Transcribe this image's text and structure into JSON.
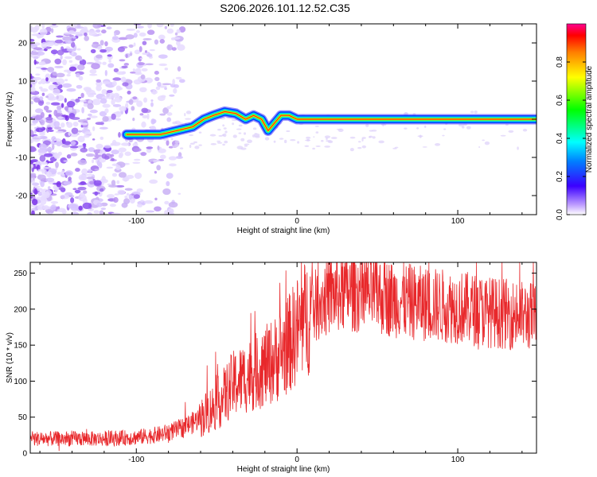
{
  "title": "S206.2026.101.12.52.C35",
  "chart_data": [
    {
      "type": "heatmap",
      "xlabel": "Height of straight line (km)",
      "ylabel": "Frequency (Hz)",
      "xlim": [
        -166,
        149
      ],
      "ylim": [
        -25,
        25
      ],
      "xticks": [
        -100,
        0,
        100
      ],
      "yticks": [
        -20,
        -10,
        0,
        10,
        20
      ],
      "colorbar": {
        "label": "Normalized spectral amplitude",
        "ticks": [
          0.0,
          0.2,
          0.4,
          0.6,
          0.8
        ],
        "range": [
          0,
          1
        ]
      },
      "ridge": {
        "description": "line trace",
        "points": [
          [
            -106,
            -4
          ],
          [
            -95,
            -4
          ],
          [
            -85,
            -4
          ],
          [
            -75,
            -3
          ],
          [
            -65,
            -2
          ],
          [
            -58,
            0
          ],
          [
            -52,
            1
          ],
          [
            -45,
            2
          ],
          [
            -38,
            1.5
          ],
          [
            -32,
            0
          ],
          [
            -27,
            1
          ],
          [
            -22,
            0
          ],
          [
            -18,
            -3
          ],
          [
            -14,
            -1
          ],
          [
            -10,
            1
          ],
          [
            -5,
            1
          ],
          [
            0,
            0
          ],
          [
            10,
            0
          ],
          [
            40,
            0
          ],
          [
            80,
            0
          ],
          [
            120,
            0
          ],
          [
            149,
            0
          ]
        ]
      }
    },
    {
      "type": "line",
      "xlabel": "Height of straight line (km)",
      "ylabel": "SNR (10 * v/v)",
      "xlim": [
        -166,
        149
      ],
      "ylim": [
        0,
        265
      ],
      "xticks": [
        -100,
        0,
        100
      ],
      "yticks": [
        0,
        50,
        100,
        150,
        200,
        250
      ],
      "color": "#e8282b",
      "trend": [
        [
          -166,
          20
        ],
        [
          -120,
          20
        ],
        [
          -100,
          22
        ],
        [
          -85,
          26
        ],
        [
          -75,
          32
        ],
        [
          -65,
          42
        ],
        [
          -55,
          58
        ],
        [
          -48,
          72
        ],
        [
          -40,
          95
        ],
        [
          -30,
          108
        ],
        [
          -20,
          120
        ],
        [
          -12,
          133
        ],
        [
          -5,
          152
        ],
        [
          0,
          170
        ],
        [
          8,
          195
        ],
        [
          15,
          212
        ],
        [
          22,
          220
        ],
        [
          30,
          224
        ],
        [
          45,
          222
        ],
        [
          60,
          214
        ],
        [
          80,
          207
        ],
        [
          100,
          203
        ],
        [
          120,
          196
        ],
        [
          140,
          191
        ],
        [
          149,
          190
        ]
      ]
    }
  ]
}
